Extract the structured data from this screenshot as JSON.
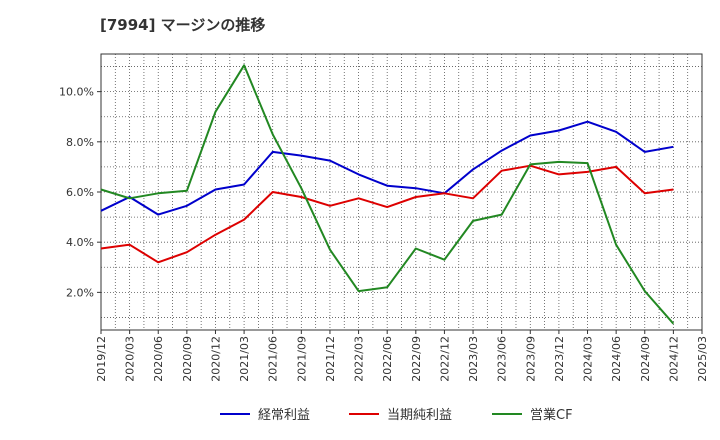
{
  "chart_data": {
    "type": "line",
    "title": "[7994]  マージンの推移",
    "x": [
      "2019/12",
      "2020/03",
      "2020/06",
      "2020/09",
      "2020/12",
      "2021/03",
      "2021/06",
      "2021/09",
      "2021/12",
      "2022/03",
      "2022/06",
      "2022/09",
      "2022/12",
      "2023/03",
      "2023/06",
      "2023/09",
      "2023/12",
      "2024/03",
      "2024/06",
      "2024/09",
      "2024/12",
      "2025/03"
    ],
    "y_ticks": [
      "2.0%",
      "4.0%",
      "6.0%",
      "8.0%",
      "10.0%"
    ],
    "y_tick_values": [
      2,
      4,
      6,
      8,
      10
    ],
    "ylim": [
      0.5,
      11.5
    ],
    "grid": true,
    "legend_position": "bottom",
    "series": [
      {
        "name": "経常利益",
        "color": "#0000cc",
        "values": [
          5.25,
          5.8,
          5.1,
          5.45,
          6.1,
          6.3,
          7.6,
          7.45,
          7.25,
          6.7,
          6.25,
          6.15,
          5.95,
          6.9,
          7.65,
          8.25,
          8.45,
          8.8,
          8.4,
          7.6,
          7.8,
          null
        ]
      },
      {
        "name": "当期純利益",
        "color": "#dd0000",
        "values": [
          3.75,
          3.9,
          3.2,
          3.6,
          4.3,
          4.9,
          6.0,
          5.8,
          5.45,
          5.75,
          5.4,
          5.8,
          5.95,
          5.75,
          6.85,
          7.05,
          6.7,
          6.8,
          7.0,
          5.95,
          6.1,
          null
        ]
      },
      {
        "name": "営業CF",
        "color": "#228822",
        "values": [
          6.1,
          5.75,
          5.95,
          6.05,
          9.2,
          11.05,
          8.3,
          6.15,
          3.7,
          2.05,
          2.2,
          3.75,
          3.3,
          4.85,
          5.1,
          7.1,
          7.2,
          7.15,
          3.9,
          2.05,
          0.75,
          null
        ]
      }
    ]
  }
}
